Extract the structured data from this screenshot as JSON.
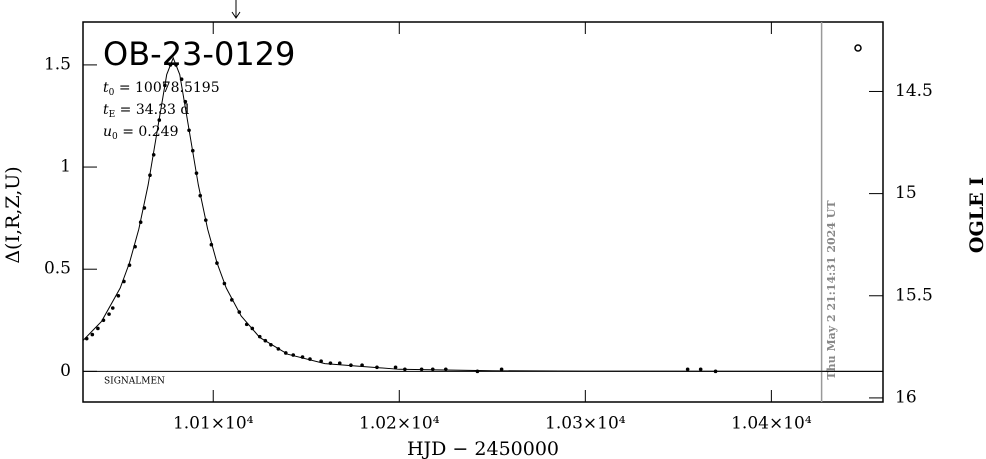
{
  "chart_data": {
    "type": "scatter",
    "title": "OB-23-0129",
    "params": [
      {
        "symbol": "t",
        "sub": "0",
        "text": " = 10078.5195"
      },
      {
        "symbol": "t",
        "sub": "E",
        "text": " = 34.33 d"
      },
      {
        "symbol": "u",
        "sub": "0",
        "text": " = 0.249"
      }
    ],
    "annotation": "SIGNALMEN",
    "timestamp": "Thu May  2 21:14:31 2024 UT",
    "x_label": "HJD − 2450000",
    "y_label": "Δ(I,R,Z,U)",
    "y2_label": "OGLE I",
    "xlim": [
      10030,
      10460
    ],
    "ylim": [
      -0.15,
      1.71
    ],
    "y2lim": [
      16.02,
      14.16
    ],
    "xticks": [
      {
        "value": 10100,
        "label": "1.01×10⁴"
      },
      {
        "value": 10200,
        "label": "1.02×10⁴"
      },
      {
        "value": 10300,
        "label": "1.03×10⁴"
      },
      {
        "value": 10400,
        "label": "1.04×10⁴"
      }
    ],
    "yticks": [
      0,
      0.5,
      1,
      1.5
    ],
    "y2ticks": [
      14.5,
      15,
      15.5,
      16
    ],
    "baseline": 0,
    "vline_x": 10427,
    "series": [
      {
        "kind": "points",
        "color": "#000000",
        "x": [
          10032,
          10035,
          10038,
          10041,
          10044,
          10046,
          10049,
          10052,
          10055,
          10058,
          10061,
          10063,
          10066,
          10068,
          10071,
          10074,
          10077,
          10080,
          10083,
          10085,
          10087,
          10089,
          10091,
          10093,
          10096,
          10099,
          10102,
          10106,
          10110,
          10114,
          10118,
          10121,
          10125,
          10128,
          10131,
          10135,
          10139,
          10143,
          10148,
          10152,
          10158,
          10163,
          10168,
          10174,
          10180,
          10188,
          10198,
          10203,
          10212,
          10218,
          10225,
          10242,
          10255,
          10355,
          10362,
          10370
        ],
        "values": [
          0.16,
          0.18,
          0.21,
          0.25,
          0.28,
          0.31,
          0.37,
          0.44,
          0.52,
          0.61,
          0.73,
          0.8,
          0.96,
          1.06,
          1.23,
          1.4,
          1.5,
          1.5,
          1.43,
          1.32,
          1.18,
          1.08,
          0.97,
          0.86,
          0.74,
          0.62,
          0.53,
          0.43,
          0.35,
          0.29,
          0.23,
          0.21,
          0.17,
          0.15,
          0.13,
          0.11,
          0.09,
          0.08,
          0.07,
          0.06,
          0.05,
          0.04,
          0.04,
          0.03,
          0.03,
          0.02,
          0.02,
          0.01,
          0.01,
          0.01,
          0.01,
          0,
          0.01,
          0.01,
          0.01,
          0
        ]
      },
      {
        "kind": "model",
        "color": "#000000",
        "x": [
          10030,
          10040,
          10050,
          10055,
          10060,
          10065,
          10070,
          10075,
          10078.5,
          10082,
          10087,
          10092,
          10097,
          10102,
          10107,
          10115,
          10125,
          10140,
          10160,
          10200,
          10250,
          10300,
          10460
        ],
        "values": [
          0.151,
          0.245,
          0.408,
          0.532,
          0.696,
          0.912,
          1.183,
          1.453,
          1.534,
          1.453,
          1.183,
          0.912,
          0.696,
          0.532,
          0.408,
          0.271,
          0.166,
          0.084,
          0.038,
          0.01,
          0.003,
          0.001,
          0
        ]
      }
    ]
  }
}
